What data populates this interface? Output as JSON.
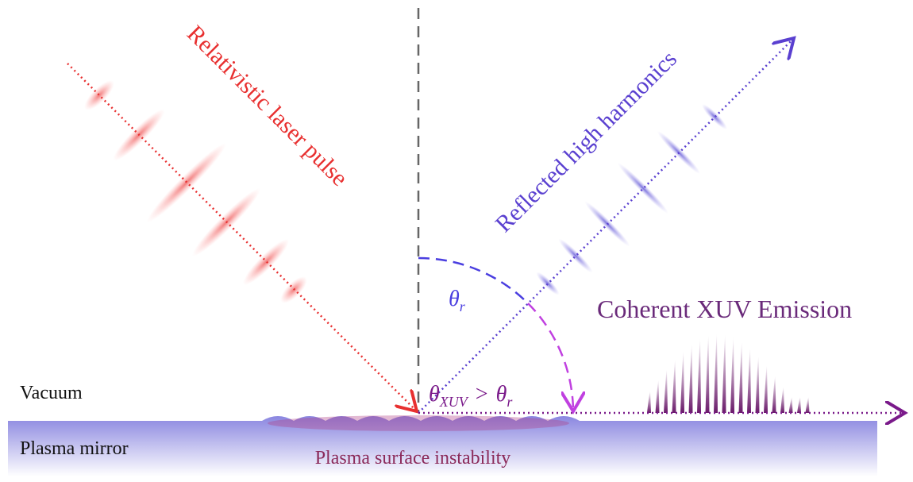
{
  "labels": {
    "incident": "Relativistic laser pulse",
    "reflected": "Reflected high harmonics",
    "emission": "Coherent XUV Emission",
    "vacuum": "Vacuum",
    "mirror": "Plasma mirror",
    "instability": "Plasma surface instability"
  },
  "angle_r": {
    "symbol": "θ",
    "sub": "r"
  },
  "angle_xuv": {
    "symbol": "θ",
    "sub": "XUV",
    "relation": ">",
    "rhs_symbol": "θ",
    "rhs_sub": "r"
  }
}
